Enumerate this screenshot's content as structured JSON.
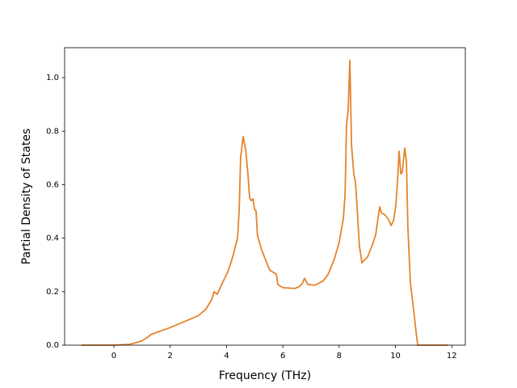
{
  "chart_data": {
    "type": "line",
    "x_label": "Frequency (THz)",
    "y_label": "Partial Density of States",
    "color": "#e5832b",
    "x": [
      -1.15,
      0,
      0.55,
      0.98,
      1.2,
      1.32,
      2.0,
      3.0,
      3.27,
      3.47,
      3.56,
      3.67,
      3.82,
      4.05,
      4.22,
      4.39,
      4.45,
      4.5,
      4.59,
      4.68,
      4.76,
      4.82,
      4.88,
      4.94,
      4.99,
      5.05,
      5.1,
      5.25,
      5.42,
      5.54,
      5.77,
      5.82,
      6.0,
      6.43,
      6.57,
      6.69,
      6.77,
      6.89,
      7.14,
      7.43,
      7.6,
      7.83,
      8.0,
      8.15,
      8.21,
      8.26,
      8.32,
      8.38,
      8.44,
      8.52,
      8.58,
      8.66,
      8.72,
      8.81,
      9.01,
      9.18,
      9.3,
      9.38,
      9.44,
      9.5,
      9.64,
      9.78,
      9.84,
      9.93,
      10.01,
      10.07,
      10.13,
      10.19,
      10.24,
      10.33,
      10.39,
      10.44,
      10.53,
      10.65,
      10.73,
      10.79,
      11.88
    ],
    "values": [
      0,
      0,
      0.003,
      0.015,
      0.03,
      0.04,
      0.066,
      0.11,
      0.135,
      0.17,
      0.2,
      0.19,
      0.225,
      0.275,
      0.33,
      0.4,
      0.505,
      0.7,
      0.78,
      0.73,
      0.64,
      0.55,
      0.54,
      0.547,
      0.51,
      0.5,
      0.41,
      0.355,
      0.31,
      0.28,
      0.265,
      0.227,
      0.215,
      0.212,
      0.218,
      0.23,
      0.25,
      0.227,
      0.224,
      0.24,
      0.263,
      0.323,
      0.384,
      0.474,
      0.565,
      0.82,
      0.88,
      1.065,
      0.746,
      0.64,
      0.61,
      0.475,
      0.37,
      0.308,
      0.33,
      0.375,
      0.414,
      0.474,
      0.517,
      0.495,
      0.486,
      0.465,
      0.447,
      0.465,
      0.52,
      0.61,
      0.725,
      0.64,
      0.646,
      0.737,
      0.686,
      0.444,
      0.233,
      0.127,
      0.05,
      0,
      0
    ],
    "xlim": [
      -1.75,
      12.48
    ],
    "ylim": [
      0,
      1.112
    ],
    "xticks": [
      0,
      2,
      4,
      6,
      8,
      10,
      12
    ],
    "yticks": [
      {
        "value": 0,
        "label": "0.0"
      },
      {
        "value": 0.2,
        "label": "0.2"
      },
      {
        "value": 0.4,
        "label": "0.4"
      },
      {
        "value": 0.6,
        "label": "0.6"
      },
      {
        "value": 0.8,
        "label": "0.8"
      },
      {
        "value": 1.0,
        "label": "1.0"
      }
    ]
  }
}
